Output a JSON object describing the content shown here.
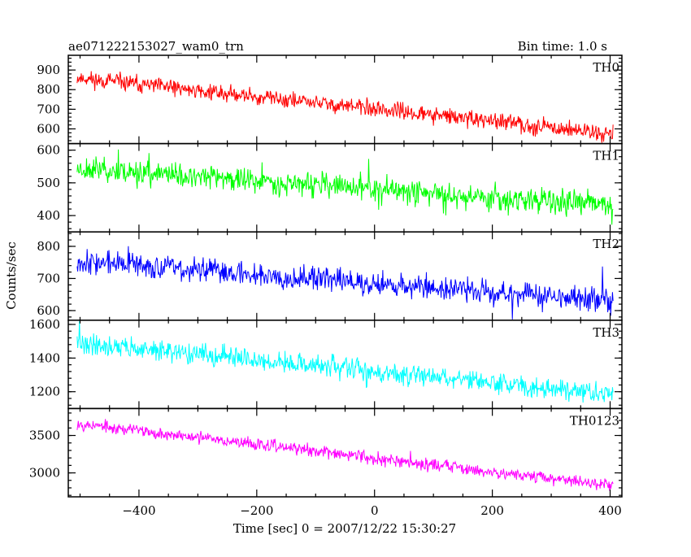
{
  "chart_data": {
    "type": "line",
    "title": "ae071222153027_wam0_trn",
    "subtitle": "Bin time: 1.0 s",
    "xlabel": "Time [sec] 0 = 2007/12/22 15:30:27",
    "ylabel": "Counts/sec",
    "xlim": [
      -520,
      420
    ],
    "x_ticks": [
      -400,
      -200,
      0,
      200,
      400
    ],
    "x_tick_labels": [
      "−400",
      "−200",
      "0",
      "200",
      "400"
    ],
    "x_range": [
      -505,
      405
    ],
    "panels": [
      {
        "name": "TH0",
        "color": "#ff0000",
        "ylim": [
          525,
          975
        ],
        "yticks": [
          600,
          700,
          800,
          900
        ],
        "ytick_labels": [
          "600",
          "700",
          "800",
          "900"
        ],
        "trend_start": 860,
        "trend_end": 575,
        "noise": 28,
        "seed": 11
      },
      {
        "name": "TH1",
        "color": "#00ff00",
        "ylim": [
          350,
          620
        ],
        "yticks": [
          400,
          500,
          600
        ],
        "ytick_labels": [
          "400",
          "500",
          "600"
        ],
        "trend_start": 545,
        "trend_end": 430,
        "noise": 25,
        "seed": 23
      },
      {
        "name": "TH2",
        "color": "#0000ff",
        "ylim": [
          570,
          845
        ],
        "yticks": [
          600,
          700,
          800
        ],
        "ytick_labels": [
          "600",
          "700",
          "800"
        ],
        "trend_start": 755,
        "trend_end": 630,
        "noise": 25,
        "seed": 37
      },
      {
        "name": "TH3",
        "color": "#00ffff",
        "ylim": [
          1100,
          1625
        ],
        "yticks": [
          1200,
          1400,
          1600
        ],
        "ytick_labels": [
          "1200",
          "1400",
          "1600"
        ],
        "trend_start": 1490,
        "trend_end": 1185,
        "noise": 40,
        "seed": 41
      },
      {
        "name": "TH0123",
        "color": "#ff00ff",
        "ylim": [
          2680,
          3860
        ],
        "yticks": [
          3000,
          3500
        ],
        "ytick_labels": [
          "3000",
          "3500"
        ],
        "trend_start": 3660,
        "trend_end": 2830,
        "noise": 55,
        "seed": 53
      }
    ]
  }
}
